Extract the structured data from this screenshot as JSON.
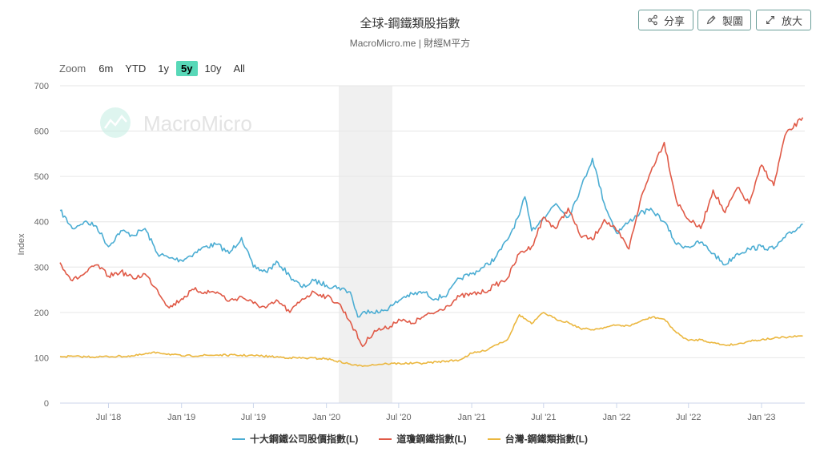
{
  "header": {
    "title": "全球-鋼鐵類股指數",
    "subtitle": "MacroMicro.me | 財經M平方"
  },
  "toolbar": {
    "share_label": "分享",
    "draw_label": "製圖",
    "expand_label": "放大"
  },
  "zoom": {
    "label": "Zoom",
    "options": [
      "6m",
      "YTD",
      "1y",
      "5y",
      "10y",
      "All"
    ],
    "active": "5y"
  },
  "watermark": "MacroMicro",
  "colors": {
    "series1": "#4badd3",
    "series2": "#e05a47",
    "series3": "#ebb73f",
    "shade": "#f0f0f0",
    "accent": "#58d8b8"
  },
  "chart_data": {
    "type": "line",
    "ylabel": "Index",
    "ylim": [
      0,
      700
    ],
    "yticks": [
      0,
      100,
      200,
      300,
      400,
      500,
      600,
      700
    ],
    "xticks": [
      "Jul '18",
      "Jan '19",
      "Jul '19",
      "Jan '20",
      "Jul '20",
      "Jan '21",
      "Jul '21",
      "Jan '22",
      "Jul '22",
      "Jan '23"
    ],
    "xticks_dates": [
      "2018-07-01",
      "2019-01-01",
      "2019-07-01",
      "2020-01-01",
      "2020-07-01",
      "2021-01-01",
      "2021-07-01",
      "2022-01-01",
      "2022-07-01",
      "2023-01-01"
    ],
    "x_range": [
      "2018-03-01",
      "2023-04-20"
    ],
    "shaded_band": [
      "2020-02-01",
      "2020-06-15"
    ],
    "legend_position": "bottom",
    "series": [
      {
        "name": "十大鋼鐵公司股價指數(L)",
        "points": [
          [
            "2018-03-01",
            425
          ],
          [
            "2018-04-01",
            385
          ],
          [
            "2018-05-01",
            400
          ],
          [
            "2018-06-01",
            390
          ],
          [
            "2018-07-01",
            345
          ],
          [
            "2018-08-01",
            380
          ],
          [
            "2018-09-01",
            370
          ],
          [
            "2018-10-01",
            385
          ],
          [
            "2018-11-01",
            330
          ],
          [
            "2018-12-01",
            320
          ],
          [
            "2019-01-01",
            315
          ],
          [
            "2019-02-01",
            330
          ],
          [
            "2019-03-01",
            345
          ],
          [
            "2019-04-01",
            350
          ],
          [
            "2019-05-01",
            330
          ],
          [
            "2019-06-01",
            365
          ],
          [
            "2019-07-01",
            300
          ],
          [
            "2019-08-01",
            290
          ],
          [
            "2019-09-01",
            310
          ],
          [
            "2019-10-01",
            280
          ],
          [
            "2019-11-01",
            255
          ],
          [
            "2019-12-01",
            270
          ],
          [
            "2020-01-01",
            260
          ],
          [
            "2020-02-01",
            255
          ],
          [
            "2020-03-01",
            245
          ],
          [
            "2020-03-20",
            190
          ],
          [
            "2020-04-15",
            205
          ],
          [
            "2020-05-15",
            200
          ],
          [
            "2020-06-15",
            215
          ],
          [
            "2020-07-15",
            235
          ],
          [
            "2020-09-01",
            245
          ],
          [
            "2020-10-01",
            230
          ],
          [
            "2020-11-01",
            240
          ],
          [
            "2020-12-01",
            275
          ],
          [
            "2021-01-01",
            285
          ],
          [
            "2021-02-01",
            300
          ],
          [
            "2021-03-01",
            320
          ],
          [
            "2021-04-01",
            360
          ],
          [
            "2021-05-01",
            415
          ],
          [
            "2021-05-15",
            455
          ],
          [
            "2021-06-01",
            380
          ],
          [
            "2021-07-01",
            410
          ],
          [
            "2021-08-01",
            440
          ],
          [
            "2021-09-01",
            410
          ],
          [
            "2021-10-01",
            470
          ],
          [
            "2021-11-01",
            540
          ],
          [
            "2021-12-01",
            440
          ],
          [
            "2022-01-01",
            375
          ],
          [
            "2022-02-01",
            400
          ],
          [
            "2022-03-01",
            420
          ],
          [
            "2022-04-01",
            425
          ],
          [
            "2022-05-01",
            400
          ],
          [
            "2022-06-01",
            350
          ],
          [
            "2022-07-01",
            345
          ],
          [
            "2022-08-01",
            355
          ],
          [
            "2022-09-01",
            330
          ],
          [
            "2022-10-01",
            305
          ],
          [
            "2022-11-01",
            330
          ],
          [
            "2022-12-01",
            340
          ],
          [
            "2023-01-01",
            345
          ],
          [
            "2023-02-01",
            340
          ],
          [
            "2023-03-01",
            365
          ],
          [
            "2023-04-15",
            395
          ]
        ]
      },
      {
        "name": "道瓊鋼鐵指數(L)",
        "points": [
          [
            "2018-03-01",
            310
          ],
          [
            "2018-04-01",
            270
          ],
          [
            "2018-05-01",
            285
          ],
          [
            "2018-06-01",
            305
          ],
          [
            "2018-07-01",
            280
          ],
          [
            "2018-08-01",
            290
          ],
          [
            "2018-09-01",
            275
          ],
          [
            "2018-10-01",
            285
          ],
          [
            "2018-11-01",
            250
          ],
          [
            "2018-12-01",
            210
          ],
          [
            "2019-01-01",
            230
          ],
          [
            "2019-02-01",
            250
          ],
          [
            "2019-03-01",
            245
          ],
          [
            "2019-04-01",
            245
          ],
          [
            "2019-05-01",
            225
          ],
          [
            "2019-06-01",
            235
          ],
          [
            "2019-07-01",
            220
          ],
          [
            "2019-08-01",
            210
          ],
          [
            "2019-09-01",
            225
          ],
          [
            "2019-10-01",
            200
          ],
          [
            "2019-11-01",
            230
          ],
          [
            "2019-12-01",
            245
          ],
          [
            "2020-01-01",
            235
          ],
          [
            "2020-02-01",
            220
          ],
          [
            "2020-03-01",
            180
          ],
          [
            "2020-04-01",
            125
          ],
          [
            "2020-05-01",
            160
          ],
          [
            "2020-06-01",
            165
          ],
          [
            "2020-07-01",
            185
          ],
          [
            "2020-08-01",
            175
          ],
          [
            "2020-09-01",
            190
          ],
          [
            "2020-10-01",
            200
          ],
          [
            "2020-11-01",
            215
          ],
          [
            "2020-12-01",
            235
          ],
          [
            "2021-01-01",
            240
          ],
          [
            "2021-02-01",
            245
          ],
          [
            "2021-03-01",
            260
          ],
          [
            "2021-04-01",
            275
          ],
          [
            "2021-05-01",
            330
          ],
          [
            "2021-06-01",
            345
          ],
          [
            "2021-07-01",
            410
          ],
          [
            "2021-08-01",
            385
          ],
          [
            "2021-09-01",
            430
          ],
          [
            "2021-10-01",
            370
          ],
          [
            "2021-11-01",
            360
          ],
          [
            "2021-12-01",
            405
          ],
          [
            "2022-01-01",
            380
          ],
          [
            "2022-02-01",
            340
          ],
          [
            "2022-03-01",
            445
          ],
          [
            "2022-04-01",
            520
          ],
          [
            "2022-05-01",
            575
          ],
          [
            "2022-06-01",
            445
          ],
          [
            "2022-07-01",
            405
          ],
          [
            "2022-08-01",
            385
          ],
          [
            "2022-09-01",
            470
          ],
          [
            "2022-10-01",
            420
          ],
          [
            "2022-11-01",
            475
          ],
          [
            "2022-12-01",
            440
          ],
          [
            "2023-01-01",
            525
          ],
          [
            "2023-02-01",
            480
          ],
          [
            "2023-03-01",
            590
          ],
          [
            "2023-04-15",
            630
          ]
        ]
      },
      {
        "name": "台灣-鋼鐵類指數(L)",
        "points": [
          [
            "2018-03-01",
            103
          ],
          [
            "2018-06-01",
            102
          ],
          [
            "2018-09-01",
            104
          ],
          [
            "2018-11-01",
            112
          ],
          [
            "2019-01-01",
            104
          ],
          [
            "2019-04-01",
            106
          ],
          [
            "2019-07-01",
            105
          ],
          [
            "2019-10-01",
            100
          ],
          [
            "2020-01-01",
            98
          ],
          [
            "2020-03-20",
            82
          ],
          [
            "2020-06-01",
            87
          ],
          [
            "2020-09-01",
            88
          ],
          [
            "2020-12-01",
            95
          ],
          [
            "2021-01-01",
            110
          ],
          [
            "2021-02-01",
            115
          ],
          [
            "2021-03-01",
            128
          ],
          [
            "2021-04-01",
            140
          ],
          [
            "2021-05-01",
            195
          ],
          [
            "2021-06-01",
            175
          ],
          [
            "2021-07-01",
            200
          ],
          [
            "2021-08-01",
            185
          ],
          [
            "2021-09-01",
            178
          ],
          [
            "2021-10-01",
            165
          ],
          [
            "2021-11-01",
            162
          ],
          [
            "2021-12-01",
            167
          ],
          [
            "2022-01-01",
            172
          ],
          [
            "2022-02-01",
            170
          ],
          [
            "2022-03-01",
            180
          ],
          [
            "2022-04-01",
            190
          ],
          [
            "2022-05-01",
            185
          ],
          [
            "2022-06-01",
            155
          ],
          [
            "2022-07-01",
            138
          ],
          [
            "2022-08-01",
            140
          ],
          [
            "2022-09-01",
            133
          ],
          [
            "2022-10-01",
            128
          ],
          [
            "2022-11-01",
            130
          ],
          [
            "2022-12-01",
            137
          ],
          [
            "2023-01-01",
            140
          ],
          [
            "2023-02-01",
            143
          ],
          [
            "2023-03-01",
            145
          ],
          [
            "2023-04-15",
            148
          ]
        ]
      }
    ]
  }
}
